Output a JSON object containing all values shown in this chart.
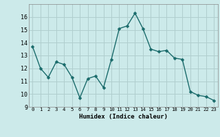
{
  "x": [
    0,
    1,
    2,
    3,
    4,
    5,
    6,
    7,
    8,
    9,
    10,
    11,
    12,
    13,
    14,
    15,
    16,
    17,
    18,
    19,
    20,
    21,
    22,
    23
  ],
  "y": [
    13.7,
    12.0,
    11.3,
    12.5,
    12.3,
    11.3,
    9.7,
    11.2,
    11.4,
    10.5,
    12.7,
    15.1,
    15.3,
    16.3,
    15.1,
    13.5,
    13.3,
    13.4,
    12.8,
    12.7,
    10.2,
    9.9,
    9.8,
    9.5
  ],
  "line_color": "#1a6b6b",
  "marker_color": "#1a6b6b",
  "bg_color": "#cceaea",
  "grid_color": "#b0cece",
  "xlabel": "Humidex (Indice chaleur)",
  "xlim": [
    -0.5,
    23.5
  ],
  "ylim": [
    9,
    17
  ],
  "yticks": [
    9,
    10,
    11,
    12,
    13,
    14,
    15,
    16
  ],
  "xticks": [
    0,
    1,
    2,
    3,
    4,
    5,
    6,
    7,
    8,
    9,
    10,
    11,
    12,
    13,
    14,
    15,
    16,
    17,
    18,
    19,
    20,
    21,
    22,
    23
  ],
  "marker_size": 2.5,
  "line_width": 1.0
}
